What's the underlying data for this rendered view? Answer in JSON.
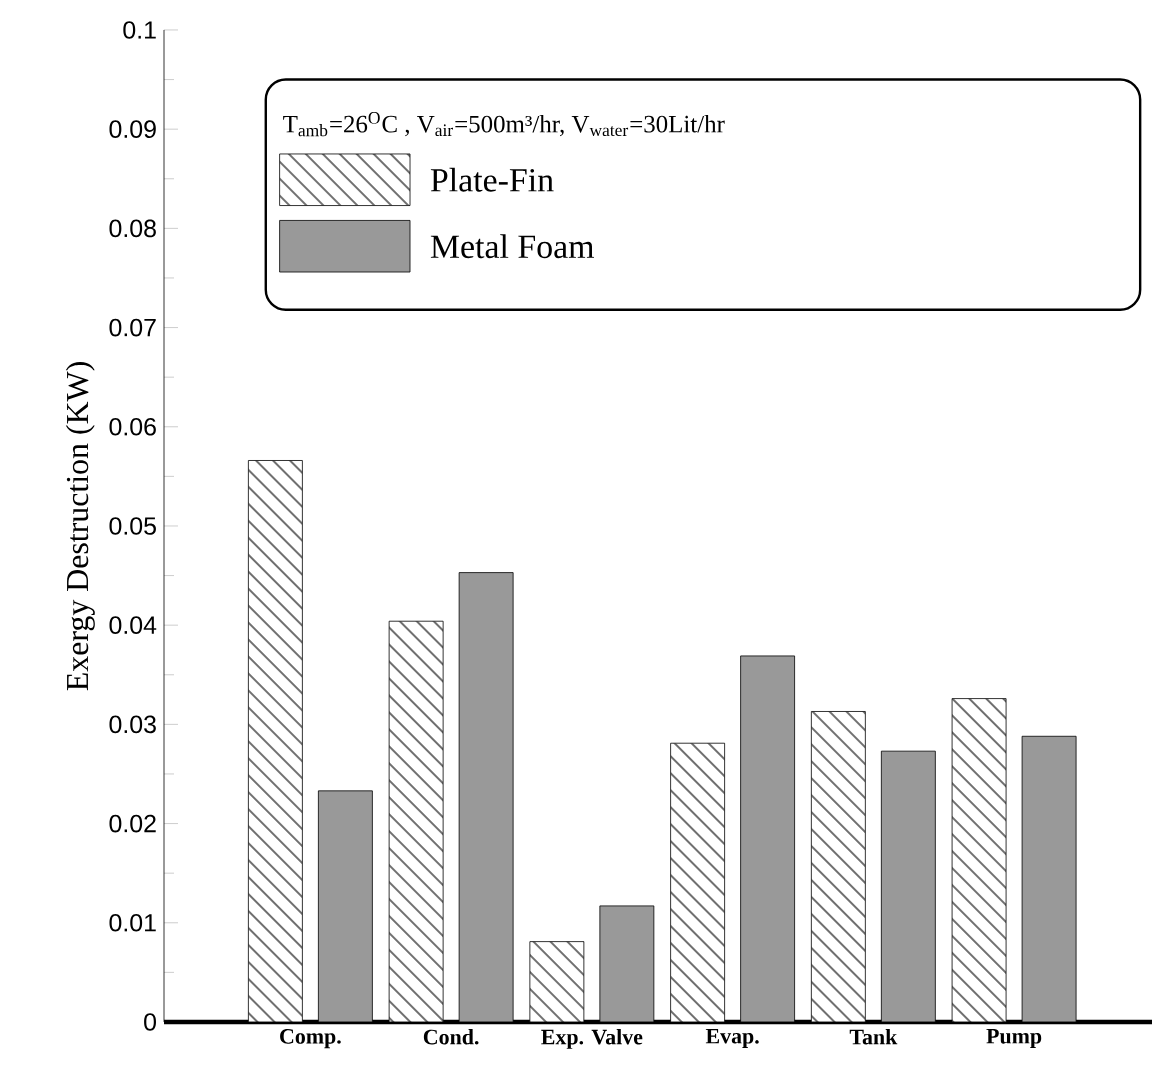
{
  "chart_data": {
    "type": "bar",
    "ylabel": "Exergy Destruction (KW)",
    "categories": [
      "Comp.",
      "Cond.",
      "Exp. Valve",
      "Evap.",
      "Tank",
      "Pump"
    ],
    "series": [
      {
        "name": "Plate-Fin",
        "color": "#ffffff",
        "values": [
          0.0566,
          0.0404,
          0.0081,
          0.0281,
          0.0313,
          0.0326
        ]
      },
      {
        "name": "Metal Foam",
        "color": "#999999",
        "values": [
          0.0233,
          0.0453,
          0.0117,
          0.0369,
          0.0273,
          0.0288
        ]
      }
    ],
    "ylim": [
      0,
      0.1
    ],
    "yticks": [
      0,
      0.01,
      0.02,
      0.03,
      0.04,
      0.05,
      0.06,
      0.07,
      0.08,
      0.09,
      0.1
    ],
    "legend": "top",
    "annotations": [
      "T$_{amb}$=26$^{O}$C , V$_{air}$=500m³/hr, V$_{water}$=30Lit/hr"
    ]
  }
}
